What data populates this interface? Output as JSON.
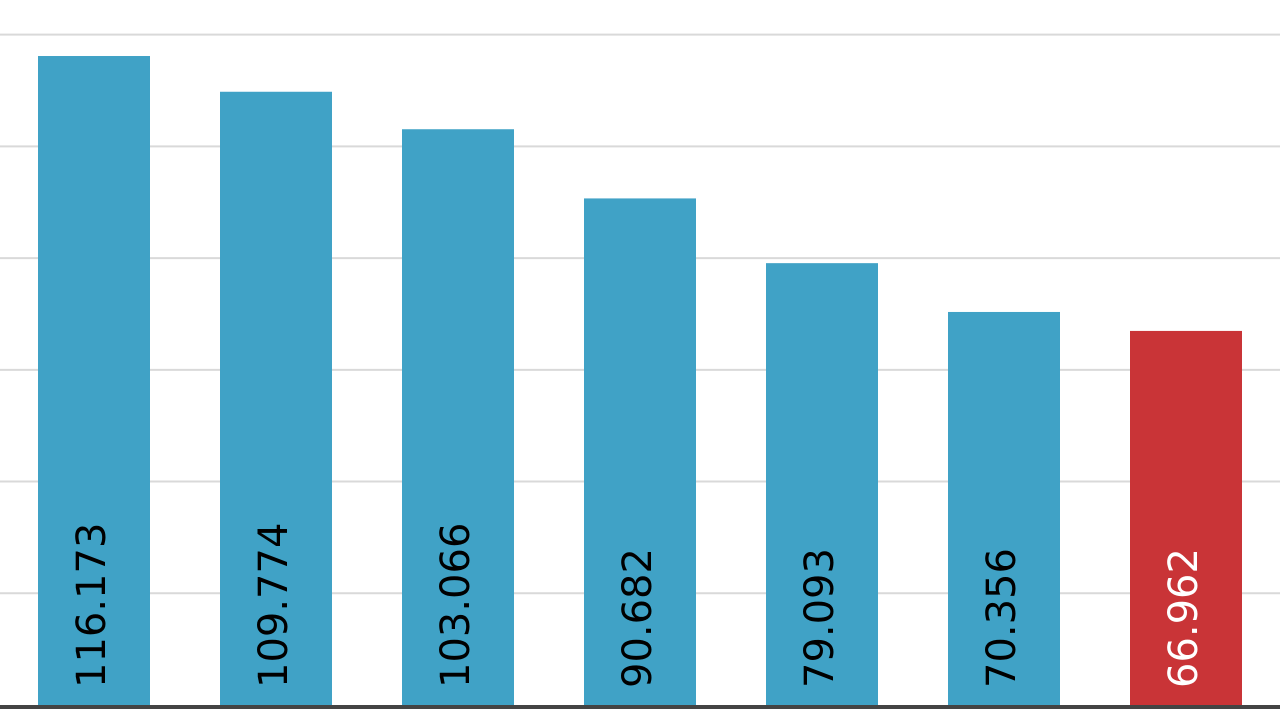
{
  "chart_data": {
    "type": "bar",
    "values": [
      116.173,
      109.774,
      103.066,
      90.682,
      79.093,
      70.356,
      66.962
    ],
    "colors": [
      "#40a2c6",
      "#40a2c6",
      "#40a2c6",
      "#40a2c6",
      "#40a2c6",
      "#40a2c6",
      "#c93437"
    ],
    "label_colors": [
      "#000000",
      "#000000",
      "#000000",
      "#000000",
      "#000000",
      "#000000",
      "#ffffff"
    ],
    "ylim": [
      0,
      126.2
    ],
    "yticks": [
      20,
      40,
      60,
      80,
      100,
      120
    ],
    "grid": true
  }
}
